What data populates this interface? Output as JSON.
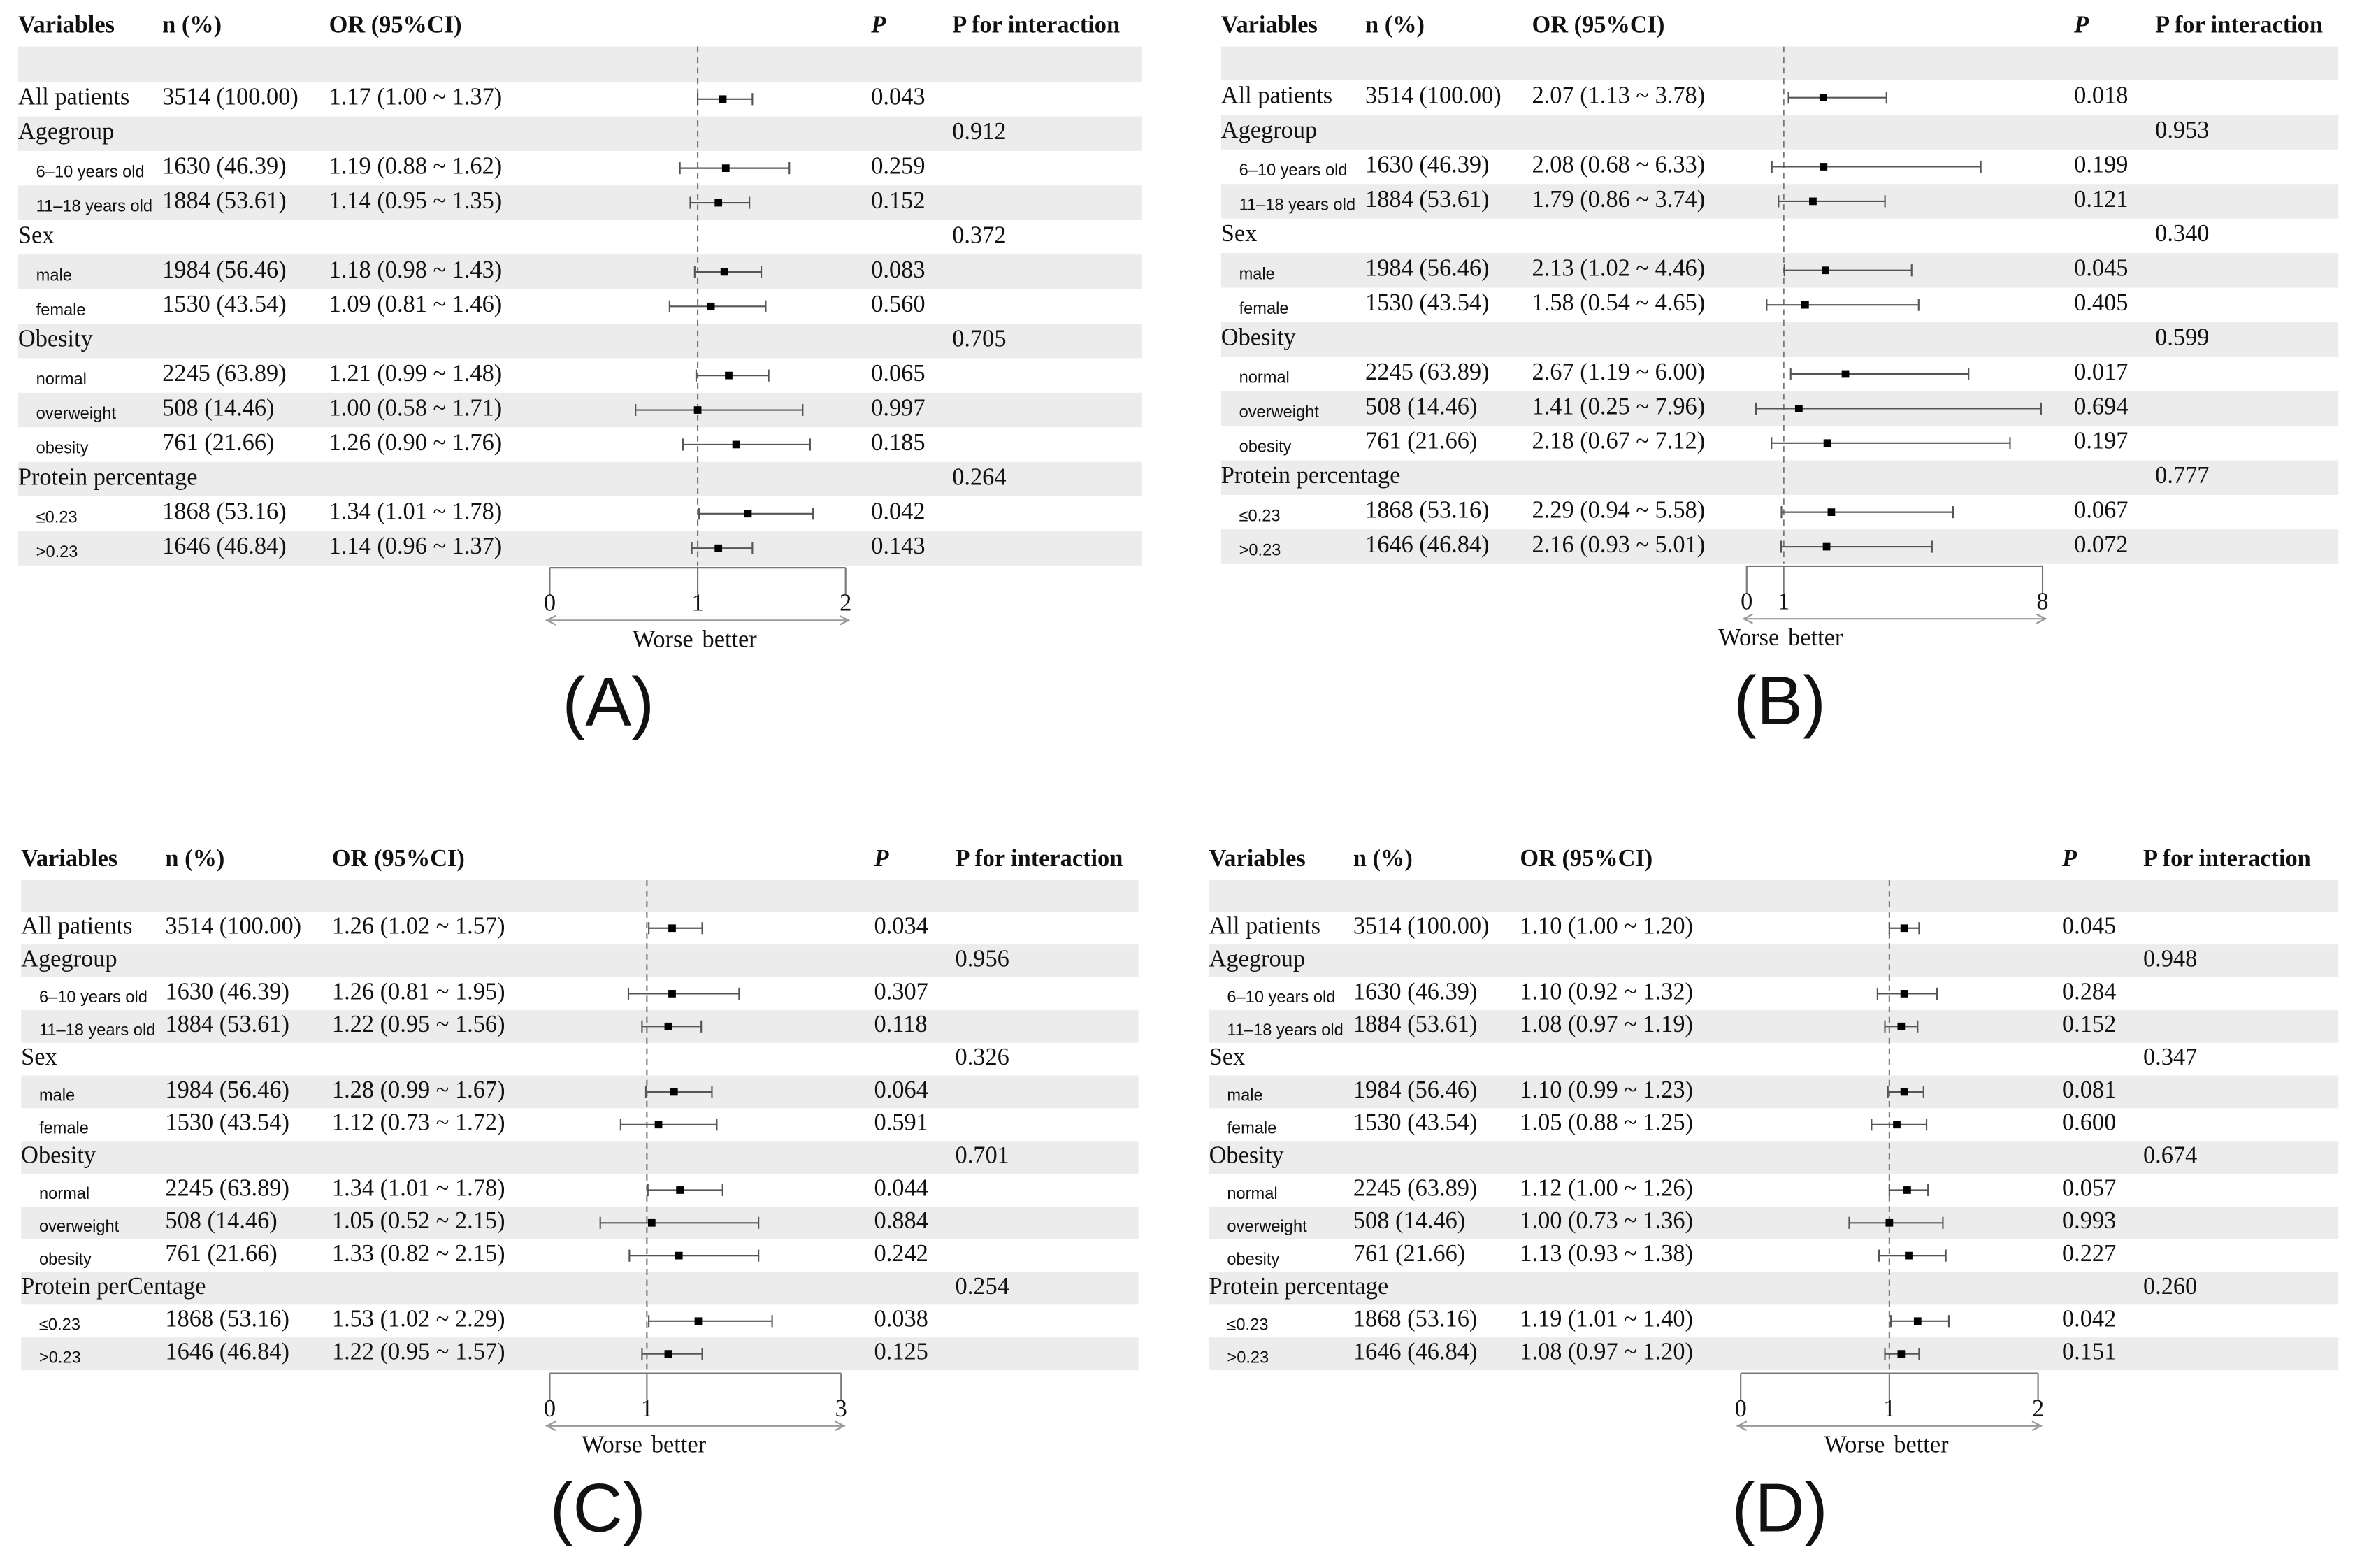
{
  "chart_data": [
    {
      "type": "forest",
      "label": "(A)",
      "columns": [
        "Variables",
        "n (%)",
        "OR (95%CI)",
        "P",
        "P for interaction"
      ],
      "overall": {
        "label": "All patients",
        "n": "3514 (100.00)",
        "or_ci": "1.17 (1.00 ~ 1.37)",
        "or": 1.17,
        "lower": 1.0,
        "upper": 1.37,
        "p": "0.043"
      },
      "subgroups": [
        {
          "label": "Agegroup",
          "p_interaction": "0.912",
          "rows": [
            {
              "label": "6–10 years old",
              "n": "1630 (46.39)",
              "or_ci": "1.19 (0.88 ~ 1.62)",
              "or": 1.19,
              "lower": 0.88,
              "upper": 1.62,
              "p": "0.259"
            },
            {
              "label": "11–18 years old",
              "n": "1884 (53.61)",
              "or_ci": "1.14 (0.95 ~ 1.35)",
              "or": 1.14,
              "lower": 0.95,
              "upper": 1.35,
              "p": "0.152"
            }
          ]
        },
        {
          "label": "Sex",
          "p_interaction": "0.372",
          "rows": [
            {
              "label": "male",
              "n": "1984 (56.46)",
              "or_ci": "1.18 (0.98 ~ 1.43)",
              "or": 1.18,
              "lower": 0.98,
              "upper": 1.43,
              "p": "0.083"
            },
            {
              "label": "female",
              "n": "1530 (43.54)",
              "or_ci": "1.09 (0.81 ~ 1.46)",
              "or": 1.09,
              "lower": 0.81,
              "upper": 1.46,
              "p": "0.560"
            }
          ]
        },
        {
          "label": "Obesity",
          "p_interaction": "0.705",
          "rows": [
            {
              "label": "normal",
              "n": "2245 (63.89)",
              "or_ci": "1.21 (0.99 ~ 1.48)",
              "or": 1.21,
              "lower": 0.99,
              "upper": 1.48,
              "p": "0.065"
            },
            {
              "label": "overweight",
              "n": "508 (14.46)",
              "or_ci": "1.00 (0.58 ~ 1.71)",
              "or": 1.0,
              "lower": 0.58,
              "upper": 1.71,
              "p": "0.997"
            },
            {
              "label": "obesity",
              "n": "761 (21.66)",
              "or_ci": "1.26 (0.90 ~ 1.76)",
              "or": 1.26,
              "lower": 0.9,
              "upper": 1.76,
              "p": "0.185"
            }
          ]
        },
        {
          "label": "Protein percentage",
          "p_interaction": "0.264",
          "rows": [
            {
              "label": "≤0.23",
              "n": "1868 (53.16)",
              "or_ci": "1.34 (1.01 ~ 1.78)",
              "or": 1.34,
              "lower": 1.01,
              "upper": 1.78,
              "p": "0.042"
            },
            {
              "label": ">0.23",
              "n": "1646 (46.84)",
              "or_ci": "1.14 (0.96 ~ 1.37)",
              "or": 1.14,
              "lower": 0.96,
              "upper": 1.37,
              "p": "0.143"
            }
          ]
        }
      ],
      "xlim": [
        0,
        2
      ],
      "xticks": [
        0,
        1,
        2
      ],
      "ref_line": 1,
      "direction_labels": [
        "Worse",
        "better"
      ]
    },
    {
      "type": "forest",
      "label": "(B)",
      "columns": [
        "Variables",
        "n (%)",
        "OR (95%CI)",
        "P",
        "P for interaction"
      ],
      "overall": {
        "label": "All patients",
        "n": "3514 (100.00)",
        "or_ci": "2.07 (1.13 ~ 3.78)",
        "or": 2.07,
        "lower": 1.13,
        "upper": 3.78,
        "p": "0.018"
      },
      "subgroups": [
        {
          "label": "Agegroup",
          "p_interaction": "0.953",
          "rows": [
            {
              "label": "6–10 years old",
              "n": "1630 (46.39)",
              "or_ci": "2.08 (0.68 ~ 6.33)",
              "or": 2.08,
              "lower": 0.68,
              "upper": 6.33,
              "p": "0.199"
            },
            {
              "label": "11–18 years old",
              "n": "1884 (53.61)",
              "or_ci": "1.79 (0.86 ~ 3.74)",
              "or": 1.79,
              "lower": 0.86,
              "upper": 3.74,
              "p": "0.121"
            }
          ]
        },
        {
          "label": "Sex",
          "p_interaction": "0.340",
          "rows": [
            {
              "label": "male",
              "n": "1984 (56.46)",
              "or_ci": "2.13 (1.02 ~ 4.46)",
              "or": 2.13,
              "lower": 1.02,
              "upper": 4.46,
              "p": "0.045"
            },
            {
              "label": "female",
              "n": "1530 (43.54)",
              "or_ci": "1.58 (0.54 ~ 4.65)",
              "or": 1.58,
              "lower": 0.54,
              "upper": 4.65,
              "p": "0.405"
            }
          ]
        },
        {
          "label": "Obesity",
          "p_interaction": "0.599",
          "rows": [
            {
              "label": "normal",
              "n": "2245 (63.89)",
              "or_ci": "2.67 (1.19 ~ 6.00)",
              "or": 2.67,
              "lower": 1.19,
              "upper": 6.0,
              "p": "0.017"
            },
            {
              "label": "overweight",
              "n": "508 (14.46)",
              "or_ci": "1.41 (0.25 ~ 7.96)",
              "or": 1.41,
              "lower": 0.25,
              "upper": 7.96,
              "p": "0.694"
            },
            {
              "label": "obesity",
              "n": "761 (21.66)",
              "or_ci": "2.18 (0.67 ~ 7.12)",
              "or": 2.18,
              "lower": 0.67,
              "upper": 7.12,
              "p": "0.197"
            }
          ]
        },
        {
          "label": "Protein percentage",
          "p_interaction": "0.777",
          "rows": [
            {
              "label": "≤0.23",
              "n": "1868 (53.16)",
              "or_ci": "2.29 (0.94 ~ 5.58)",
              "or": 2.29,
              "lower": 0.94,
              "upper": 5.58,
              "p": "0.067"
            },
            {
              "label": ">0.23",
              "n": "1646 (46.84)",
              "or_ci": "2.16 (0.93 ~ 5.01)",
              "or": 2.16,
              "lower": 0.93,
              "upper": 5.01,
              "p": "0.072"
            }
          ]
        }
      ],
      "xlim": [
        0,
        8
      ],
      "xticks": [
        0,
        1,
        8
      ],
      "ref_line": 1,
      "direction_labels": [
        "Worse",
        "better"
      ]
    },
    {
      "type": "forest",
      "label": "(C)",
      "columns": [
        "Variables",
        "n (%)",
        "OR (95%CI)",
        "P",
        "P for interaction"
      ],
      "overall": {
        "label": "All patients",
        "n": "3514 (100.00)",
        "or_ci": "1.26 (1.02 ~ 1.57)",
        "or": 1.26,
        "lower": 1.02,
        "upper": 1.57,
        "p": "0.034"
      },
      "subgroups": [
        {
          "label": "Agegroup",
          "p_interaction": "0.956",
          "rows": [
            {
              "label": "6–10 years old",
              "n": "1630 (46.39)",
              "or_ci": "1.26 (0.81 ~ 1.95)",
              "or": 1.26,
              "lower": 0.81,
              "upper": 1.95,
              "p": "0.307"
            },
            {
              "label": "11–18 years old",
              "n": "1884 (53.61)",
              "or_ci": "1.22 (0.95 ~ 1.56)",
              "or": 1.22,
              "lower": 0.95,
              "upper": 1.56,
              "p": "0.118"
            }
          ]
        },
        {
          "label": "Sex",
          "p_interaction": "0.326",
          "rows": [
            {
              "label": "male",
              "n": "1984 (56.46)",
              "or_ci": "1.28 (0.99 ~ 1.67)",
              "or": 1.28,
              "lower": 0.99,
              "upper": 1.67,
              "p": "0.064"
            },
            {
              "label": "female",
              "n": "1530 (43.54)",
              "or_ci": "1.12 (0.73 ~ 1.72)",
              "or": 1.12,
              "lower": 0.73,
              "upper": 1.72,
              "p": "0.591"
            }
          ]
        },
        {
          "label": "Obesity",
          "p_interaction": "0.701",
          "rows": [
            {
              "label": "normal",
              "n": "2245 (63.89)",
              "or_ci": "1.34 (1.01 ~ 1.78)",
              "or": 1.34,
              "lower": 1.01,
              "upper": 1.78,
              "p": "0.044"
            },
            {
              "label": "overweight",
              "n": "508 (14.46)",
              "or_ci": "1.05 (0.52 ~ 2.15)",
              "or": 1.05,
              "lower": 0.52,
              "upper": 2.15,
              "p": "0.884"
            },
            {
              "label": "obesity",
              "n": "761 (21.66)",
              "or_ci": "1.33 (0.82 ~ 2.15)",
              "or": 1.33,
              "lower": 0.82,
              "upper": 2.15,
              "p": "0.242"
            }
          ]
        },
        {
          "label": "Protein perCentage",
          "p_interaction": "0.254",
          "rows": [
            {
              "label": "≤0.23",
              "n": "1868 (53.16)",
              "or_ci": "1.53 (1.02 ~ 2.29)",
              "or": 1.53,
              "lower": 1.02,
              "upper": 2.29,
              "p": "0.038"
            },
            {
              "label": ">0.23",
              "n": "1646 (46.84)",
              "or_ci": "1.22 (0.95 ~ 1.57)",
              "or": 1.22,
              "lower": 0.95,
              "upper": 1.57,
              "p": "0.125"
            }
          ]
        }
      ],
      "xlim": [
        0,
        3
      ],
      "xticks": [
        0,
        1,
        3
      ],
      "ref_line": 1,
      "direction_labels": [
        "Worse",
        "better"
      ]
    },
    {
      "type": "forest",
      "label": "(D)",
      "columns": [
        "Variables",
        "n (%)",
        "OR (95%CI)",
        "P",
        "P for interaction"
      ],
      "overall": {
        "label": "All patients",
        "n": "3514 (100.00)",
        "or_ci": "1.10 (1.00 ~ 1.20)",
        "or": 1.1,
        "lower": 1.0,
        "upper": 1.2,
        "p": "0.045"
      },
      "subgroups": [
        {
          "label": "Agegroup",
          "p_interaction": "0.948",
          "rows": [
            {
              "label": "6–10 years old",
              "n": "1630 (46.39)",
              "or_ci": "1.10 (0.92 ~ 1.32)",
              "or": 1.1,
              "lower": 0.92,
              "upper": 1.32,
              "p": "0.284"
            },
            {
              "label": "11–18 years old",
              "n": "1884 (53.61)",
              "or_ci": "1.08 (0.97 ~ 1.19)",
              "or": 1.08,
              "lower": 0.97,
              "upper": 1.19,
              "p": "0.152"
            }
          ]
        },
        {
          "label": "Sex",
          "p_interaction": "0.347",
          "rows": [
            {
              "label": "male",
              "n": "1984 (56.46)",
              "or_ci": "1.10 (0.99 ~ 1.23)",
              "or": 1.1,
              "lower": 0.99,
              "upper": 1.23,
              "p": "0.081"
            },
            {
              "label": "female",
              "n": "1530 (43.54)",
              "or_ci": "1.05 (0.88 ~ 1.25)",
              "or": 1.05,
              "lower": 0.88,
              "upper": 1.25,
              "p": "0.600"
            }
          ]
        },
        {
          "label": "Obesity",
          "p_interaction": "0.674",
          "rows": [
            {
              "label": "normal",
              "n": "2245 (63.89)",
              "or_ci": "1.12 (1.00 ~ 1.26)",
              "or": 1.12,
              "lower": 1.0,
              "upper": 1.26,
              "p": "0.057"
            },
            {
              "label": "overweight",
              "n": "508 (14.46)",
              "or_ci": "1.00 (0.73 ~ 1.36)",
              "or": 1.0,
              "lower": 0.73,
              "upper": 1.36,
              "p": "0.993"
            },
            {
              "label": "obesity",
              "n": "761 (21.66)",
              "or_ci": "1.13 (0.93 ~ 1.38)",
              "or": 1.13,
              "lower": 0.93,
              "upper": 1.38,
              "p": "0.227"
            }
          ]
        },
        {
          "label": "Protein percentage",
          "p_interaction": "0.260",
          "rows": [
            {
              "label": "≤0.23",
              "n": "1868 (53.16)",
              "or_ci": "1.19 (1.01 ~ 1.40)",
              "or": 1.19,
              "lower": 1.01,
              "upper": 1.4,
              "p": "0.042"
            },
            {
              "label": ">0.23",
              "n": "1646 (46.84)",
              "or_ci": "1.08 (0.97 ~ 1.20)",
              "or": 1.08,
              "lower": 0.97,
              "upper": 1.2,
              "p": "0.151"
            }
          ]
        }
      ],
      "xlim": [
        0,
        2
      ],
      "xticks": [
        0,
        1,
        2
      ],
      "ref_line": 1,
      "direction_labels": [
        "Worse",
        "better"
      ]
    }
  ]
}
